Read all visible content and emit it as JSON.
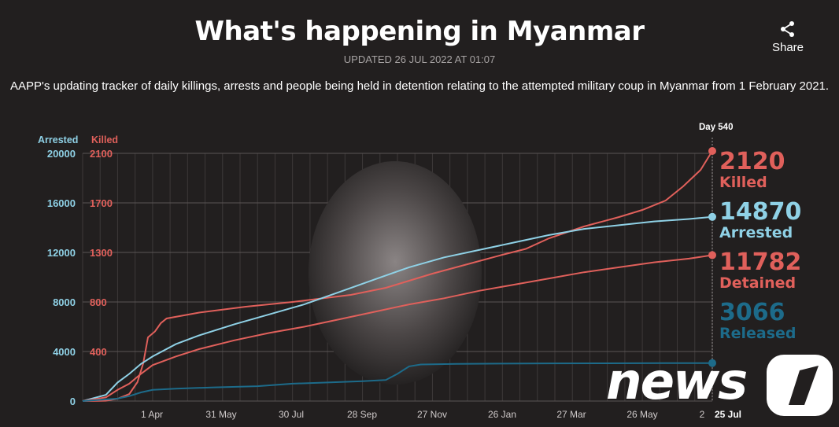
{
  "header": {
    "title": "What's happening in Myanmar",
    "updated": "UPDATED 26 JUL 2022 AT 01:07",
    "share_label": "Share",
    "share_icon": "share-icon",
    "description": "AAPP's updating tracker of daily killings, arrests and people being held in detention relating to the attempted military coup in Myanmar from 1 February 2021."
  },
  "colors": {
    "background": "#221f1f",
    "killed": "#e0605b",
    "arrested": "#8fd1e6",
    "detained": "#e0605b",
    "released": "#1d6b8a",
    "grid": "#4a4646"
  },
  "chart_data": {
    "type": "line",
    "axes": {
      "left_arrested": {
        "label": "Arrested",
        "ticks": [
          "20000",
          "16000",
          "12000",
          "8000",
          "4000",
          "0"
        ],
        "range": [
          0,
          20000
        ]
      },
      "left_killed": {
        "label": "Killed",
        "ticks": [
          "2100",
          "1700",
          "1300",
          "800",
          "400"
        ]
      }
    },
    "x_ticks": [
      "1 Apr",
      "31 May",
      "30 Jul",
      "28 Sep",
      "27 Nov",
      "26 Jan",
      "27 Mar",
      "26 May",
      "2",
      "25 Jul"
    ],
    "x_range_days": [
      0,
      540
    ],
    "current_day_label": "Day 540",
    "grid": true,
    "series": [
      {
        "name": "Killed",
        "key": "killed",
        "final": "2120",
        "points": [
          [
            0,
            0
          ],
          [
            20,
            3
          ],
          [
            30,
            20
          ],
          [
            40,
            60
          ],
          [
            47,
            160
          ],
          [
            52,
            320
          ],
          [
            56,
            540
          ],
          [
            62,
            590
          ],
          [
            67,
            660
          ],
          [
            72,
            700
          ],
          [
            100,
            750
          ],
          [
            140,
            800
          ],
          [
            180,
            840
          ],
          [
            230,
            900
          ],
          [
            260,
            960
          ],
          [
            280,
            1020
          ],
          [
            300,
            1080
          ],
          [
            330,
            1160
          ],
          [
            360,
            1240
          ],
          [
            380,
            1290
          ],
          [
            400,
            1380
          ],
          [
            430,
            1480
          ],
          [
            460,
            1560
          ],
          [
            480,
            1620
          ],
          [
            500,
            1700
          ],
          [
            515,
            1820
          ],
          [
            530,
            1960
          ],
          [
            540,
            2120
          ]
        ]
      },
      {
        "name": "Arrested",
        "key": "arrested",
        "final": "14870",
        "points": [
          [
            0,
            0
          ],
          [
            20,
            500
          ],
          [
            30,
            1500
          ],
          [
            40,
            2200
          ],
          [
            50,
            3000
          ],
          [
            60,
            3600
          ],
          [
            80,
            4600
          ],
          [
            100,
            5300
          ],
          [
            130,
            6200
          ],
          [
            160,
            7000
          ],
          [
            190,
            7800
          ],
          [
            220,
            8800
          ],
          [
            250,
            9800
          ],
          [
            280,
            10800
          ],
          [
            310,
            11600
          ],
          [
            340,
            12200
          ],
          [
            370,
            12800
          ],
          [
            400,
            13400
          ],
          [
            430,
            13900
          ],
          [
            460,
            14200
          ],
          [
            490,
            14500
          ],
          [
            520,
            14700
          ],
          [
            540,
            14870
          ]
        ]
      },
      {
        "name": "Detained",
        "key": "detained",
        "final": "11782",
        "points": [
          [
            0,
            0
          ],
          [
            20,
            300
          ],
          [
            30,
            900
          ],
          [
            40,
            1400
          ],
          [
            50,
            2200
          ],
          [
            60,
            2900
          ],
          [
            80,
            3600
          ],
          [
            100,
            4200
          ],
          [
            130,
            4900
          ],
          [
            160,
            5500
          ],
          [
            190,
            6000
          ],
          [
            220,
            6600
          ],
          [
            250,
            7200
          ],
          [
            280,
            7800
          ],
          [
            310,
            8300
          ],
          [
            340,
            8900
          ],
          [
            370,
            9400
          ],
          [
            400,
            9900
          ],
          [
            430,
            10400
          ],
          [
            460,
            10800
          ],
          [
            490,
            11200
          ],
          [
            520,
            11500
          ],
          [
            540,
            11782
          ]
        ]
      },
      {
        "name": "Released",
        "key": "released",
        "final": "3066",
        "points": [
          [
            0,
            0
          ],
          [
            30,
            200
          ],
          [
            40,
            400
          ],
          [
            50,
            700
          ],
          [
            60,
            900
          ],
          [
            80,
            1000
          ],
          [
            110,
            1100
          ],
          [
            150,
            1200
          ],
          [
            180,
            1400
          ],
          [
            210,
            1500
          ],
          [
            240,
            1600
          ],
          [
            260,
            1700
          ],
          [
            270,
            2200
          ],
          [
            280,
            2800
          ],
          [
            290,
            2950
          ],
          [
            320,
            3000
          ],
          [
            360,
            3020
          ],
          [
            400,
            3040
          ],
          [
            450,
            3050
          ],
          [
            500,
            3060
          ],
          [
            540,
            3066
          ]
        ]
      }
    ]
  },
  "logo": {
    "text": "news",
    "digit": "1"
  }
}
